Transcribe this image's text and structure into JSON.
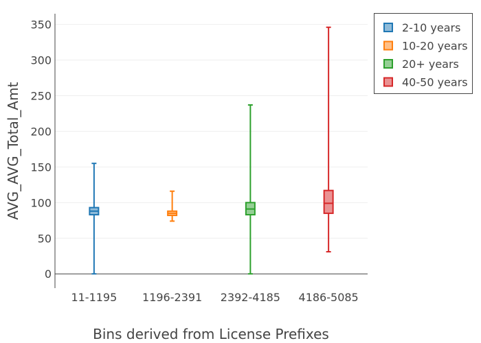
{
  "chart_data": {
    "type": "box",
    "title": "",
    "xlabel": "Bins derived from License Prefixes",
    "ylabel": "AVG_AVG_Total_Amt",
    "ylim": [
      -20,
      365
    ],
    "yticks": [
      0,
      50,
      100,
      150,
      200,
      250,
      300,
      350
    ],
    "grid": true,
    "legend_position": "top-right",
    "categories": [
      "11-1195",
      "1196-2391",
      "2392-4185",
      "4186-5085"
    ],
    "series": [
      {
        "name": "2-10 years",
        "category": "11-1195",
        "color": "#1f77b4",
        "fill": "#8fbbd9",
        "min": 0,
        "q1": 83,
        "median": 88,
        "q3": 93,
        "max": 155
      },
      {
        "name": "10-20 years",
        "category": "1196-2391",
        "color": "#ff7f0e",
        "fill": "#ffbf86",
        "min": 74,
        "q1": 82,
        "median": 85,
        "q3": 88,
        "max": 116
      },
      {
        "name": "20+ years",
        "category": "2392-4185",
        "color": "#2ca02c",
        "fill": "#95cf95",
        "min": 0,
        "q1": 83,
        "median": 91,
        "q3": 100,
        "max": 237
      },
      {
        "name": "40-50 years",
        "category": "4186-5085",
        "color": "#d62728",
        "fill": "#ea9293",
        "min": 31,
        "q1": 85,
        "median": 99,
        "q3": 117,
        "max": 346
      }
    ]
  }
}
